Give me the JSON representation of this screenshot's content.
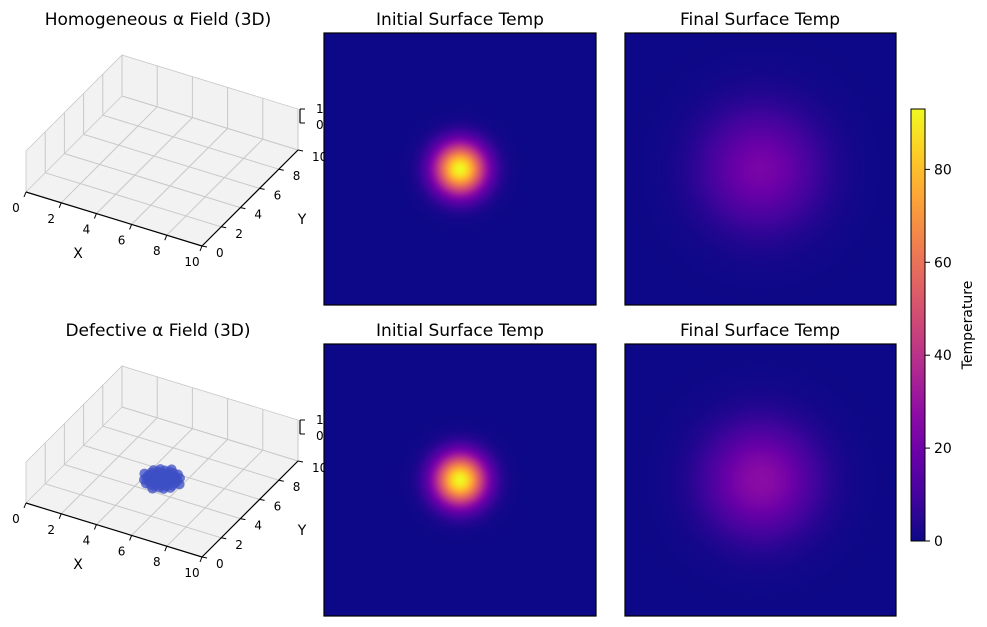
{
  "chart_data": {
    "type": "heatmap",
    "colormap": "plasma",
    "colorbar": {
      "label": "Temperature",
      "min": 0,
      "max": 93,
      "ticks": [
        0,
        20,
        40,
        60,
        80
      ]
    },
    "rows": [
      {
        "field_panel": {
          "title": "Homogeneous α Field (3D)",
          "type": "scatter3d",
          "xlabel": "X",
          "ylabel": "Y",
          "xticks": [
            "0",
            "2",
            "4",
            "6",
            "8",
            "10"
          ],
          "yticks": [
            "0",
            "2",
            "4",
            "6",
            "8",
            "10"
          ],
          "zticks": [
            "0",
            "1"
          ],
          "defect": null
        },
        "initial": {
          "title": "Initial Surface Temp",
          "hotspot": {
            "x": 5,
            "y": 5,
            "peak": 93,
            "sigma": 0.65
          }
        },
        "final": {
          "title": "Final Surface Temp",
          "hotspot": {
            "x": 5,
            "y": 5,
            "peak": 22,
            "sigma": 1.5
          }
        }
      },
      {
        "field_panel": {
          "title": "Defective α Field (3D)",
          "type": "scatter3d",
          "xlabel": "X",
          "ylabel": "Y",
          "xticks": [
            "0",
            "2",
            "4",
            "6",
            "8",
            "10"
          ],
          "yticks": [
            "0",
            "2",
            "4",
            "6",
            "8",
            "10"
          ],
          "zticks": [
            "0",
            "1"
          ],
          "defect": {
            "x": 5,
            "y": 5,
            "radius": 1,
            "color": "#3d4fc4"
          }
        },
        "initial": {
          "title": "Initial Surface Temp",
          "hotspot": {
            "x": 5,
            "y": 5,
            "peak": 93,
            "sigma": 0.65
          }
        },
        "final": {
          "title": "Final Surface Temp",
          "hotspot": {
            "x": 5,
            "y": 5,
            "peak": 27,
            "sigma": 1.4
          }
        }
      }
    ]
  }
}
